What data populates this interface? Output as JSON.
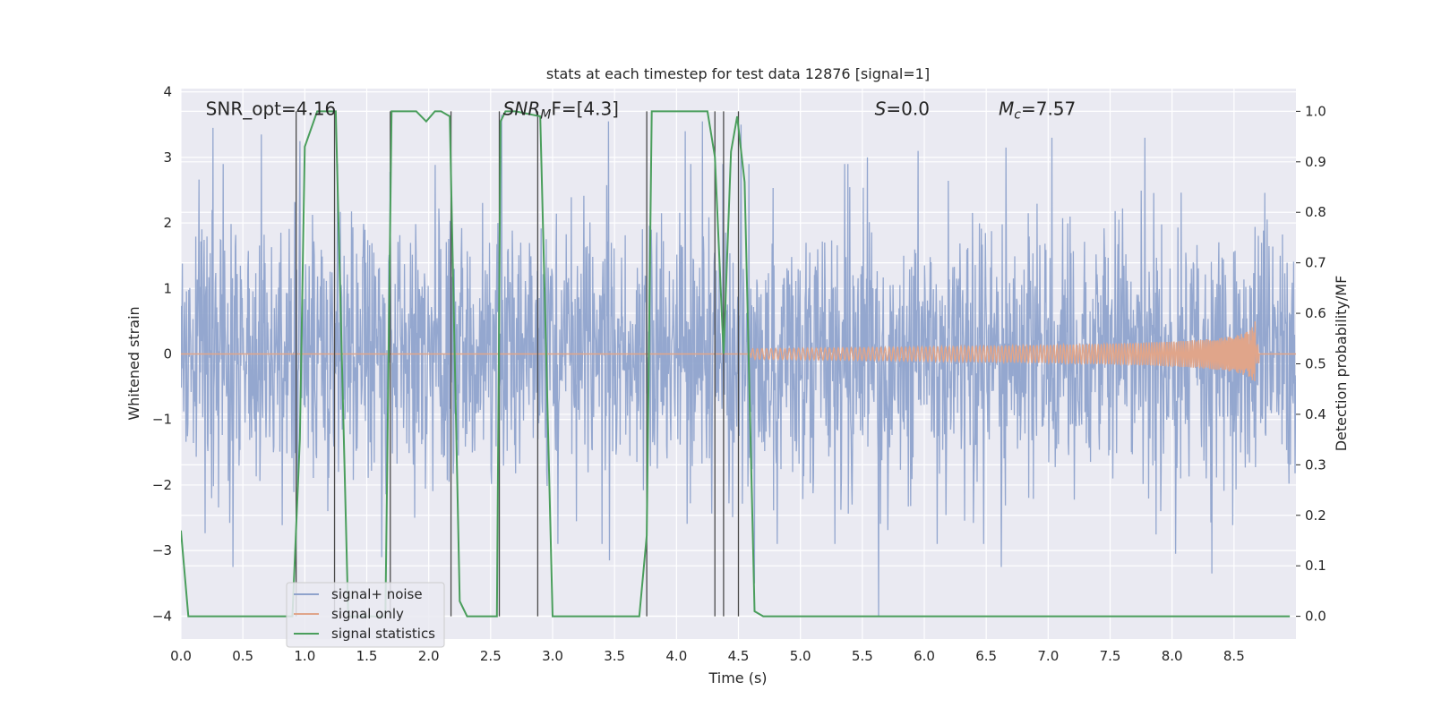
{
  "chart_data": {
    "type": "line",
    "title": "stats at each timestep for test data 12876 [signal=1]",
    "xlabel": "Time (s)",
    "ylabel_left": "Whitened strain",
    "ylabel_right": "Detection probability/MF",
    "xlim": [
      0.0,
      9.0
    ],
    "ylim_left": [
      -4.35,
      4.05
    ],
    "ylim_right": [
      -0.045,
      1.045
    ],
    "x_ticks": [
      "0.0",
      "0.5",
      "1.0",
      "1.5",
      "2.0",
      "2.5",
      "3.0",
      "3.5",
      "4.0",
      "4.5",
      "5.0",
      "5.5",
      "6.0",
      "6.5",
      "7.0",
      "7.5",
      "8.0",
      "8.5"
    ],
    "x_tick_values": [
      0.0,
      0.5,
      1.0,
      1.5,
      2.0,
      2.5,
      3.0,
      3.5,
      4.0,
      4.5,
      5.0,
      5.5,
      6.0,
      6.5,
      7.0,
      7.5,
      8.0,
      8.5
    ],
    "y_left_ticks": [
      "4",
      "3",
      "2",
      "1",
      "0",
      "−1",
      "−2",
      "−3",
      "−4"
    ],
    "y_left_tick_values": [
      4,
      3,
      2,
      1,
      0,
      -1,
      -2,
      -3,
      -4
    ],
    "y_right_ticks": [
      "1.0",
      "0.9",
      "0.8",
      "0.7",
      "0.6",
      "0.5",
      "0.4",
      "0.3",
      "0.2",
      "0.1",
      "0.0"
    ],
    "y_right_tick_values": [
      1.0,
      0.9,
      0.8,
      0.7,
      0.6,
      0.5,
      0.4,
      0.3,
      0.2,
      0.1,
      0.0
    ],
    "grid": true,
    "legend_position": "lower-left",
    "annotations": [
      {
        "text": "SNR_opt=4.16",
        "x": 0.2,
        "y": 3.65
      },
      {
        "text": "SNR",
        "sub": "M",
        "tail": "F=[4.3]",
        "italic": true,
        "x": 2.6,
        "y": 3.65
      },
      {
        "text": "S",
        "tail": "=0.0",
        "italic": true,
        "x": 5.6,
        "y": 3.65
      },
      {
        "text": "M",
        "sub": "c",
        "tail": "=7.57",
        "italic": true,
        "x": 6.6,
        "y": 3.65
      }
    ],
    "vlines": [
      0.93,
      1.24,
      1.69,
      2.18,
      2.57,
      2.88,
      3.76,
      4.31,
      4.38,
      4.5
    ],
    "series": [
      {
        "name": "signal+ noise",
        "color": "#8fa3cc",
        "axis": "left",
        "kind": "noise",
        "sigma": 1.0,
        "extremes": [
          [
            0.26,
            3.45
          ],
          [
            0.65,
            3.35
          ],
          [
            0.96,
            3.25
          ],
          [
            2.59,
            3.65
          ],
          [
            3.45,
            3.55
          ],
          [
            4.07,
            3.4
          ],
          [
            4.21,
            3.55
          ],
          [
            4.52,
            3.5
          ],
          [
            5.54,
            3.0
          ],
          [
            5.95,
            3.1
          ],
          [
            6.66,
            3.15
          ],
          [
            7.03,
            3.3
          ],
          [
            7.78,
            3.3
          ],
          [
            8.32,
            3.05
          ],
          [
            0.42,
            -3.25
          ],
          [
            1.62,
            -3.1
          ],
          [
            3.46,
            -3.15
          ],
          [
            4.63,
            -3.5
          ],
          [
            5.63,
            -4.0
          ],
          [
            6.62,
            -3.25
          ],
          [
            8.32,
            -3.35
          ],
          [
            8.03,
            -3.05
          ]
        ]
      },
      {
        "name": "signal only",
        "color": "#e0a58a",
        "axis": "left",
        "kind": "chirp",
        "t_start": 4.6,
        "t_merge": 8.67,
        "peak_amplitude": 0.5
      },
      {
        "name": "signal statistics",
        "color": "#4a9e5c",
        "axis": "right",
        "kind": "line",
        "x": [
          0.0,
          0.06,
          0.12,
          0.5,
          0.9,
          0.96,
          1.0,
          1.1,
          1.2,
          1.25,
          1.35,
          1.5,
          1.65,
          1.7,
          1.78,
          1.9,
          1.98,
          2.05,
          2.1,
          2.17,
          2.25,
          2.31,
          2.45,
          2.55,
          2.58,
          2.62,
          2.7,
          2.9,
          2.95,
          3.0,
          3.3,
          3.7,
          3.76,
          3.8,
          4.0,
          4.25,
          4.31,
          4.38,
          4.44,
          4.49,
          4.55,
          4.63,
          4.7,
          5.0,
          6.0,
          7.0,
          8.0,
          8.95
        ],
        "y": [
          0.17,
          0.0,
          0.0,
          0.0,
          0.0,
          0.35,
          0.93,
          1.0,
          1.0,
          1.0,
          0.0,
          0.0,
          0.0,
          1.0,
          1.0,
          1.0,
          0.98,
          1.0,
          1.0,
          0.99,
          0.03,
          0.0,
          0.0,
          0.0,
          0.98,
          1.0,
          1.0,
          0.99,
          0.5,
          0.0,
          0.0,
          0.0,
          0.16,
          1.0,
          1.0,
          1.0,
          0.91,
          0.52,
          0.92,
          0.99,
          0.86,
          0.01,
          0.0,
          0.0,
          0.0,
          0.0,
          0.0,
          0.0
        ]
      }
    ]
  }
}
